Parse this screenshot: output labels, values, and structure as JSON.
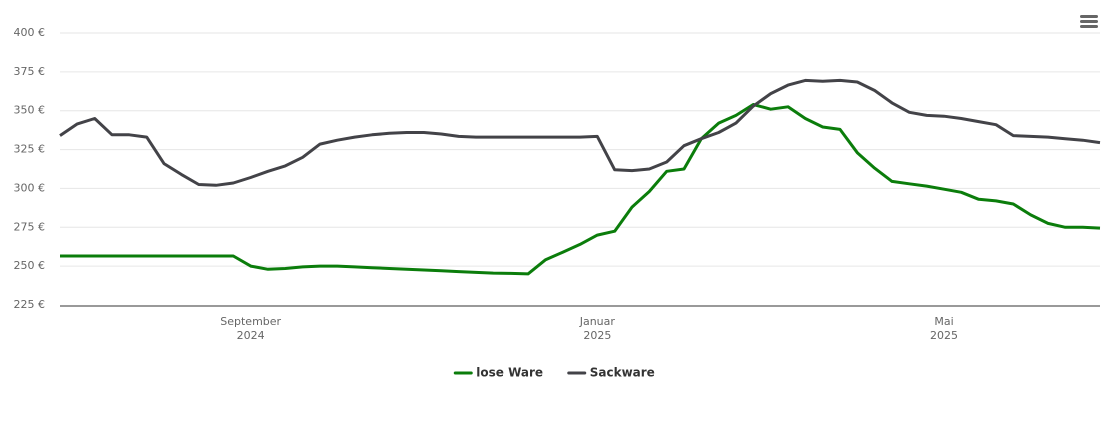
{
  "chart_data": {
    "type": "line",
    "categories": [
      null,
      null,
      null,
      null,
      null,
      null,
      null,
      null,
      null,
      null,
      null,
      "September 2024",
      null,
      null,
      null,
      null,
      null,
      null,
      null,
      null,
      null,
      null,
      null,
      null,
      null,
      null,
      null,
      null,
      null,
      null,
      null,
      "Januar 2025",
      null,
      null,
      null,
      null,
      null,
      null,
      null,
      null,
      null,
      null,
      null,
      null,
      null,
      null,
      null,
      null,
      null,
      null,
      null,
      "Mai 2025",
      null,
      null,
      null,
      null,
      null,
      null,
      null,
      null,
      null
    ],
    "series": [
      {
        "name": "lose Ware",
        "color": "#0b7d0b",
        "values": [
          256.5,
          256.5,
          256.5,
          256.5,
          256.5,
          256.5,
          256.5,
          256.5,
          256.5,
          256.5,
          256.5,
          250,
          248,
          248.5,
          249.5,
          250,
          250,
          249.5,
          249,
          248.5,
          248,
          247.5,
          247,
          246.5,
          246,
          245.5,
          245.3,
          245,
          254,
          259,
          264,
          270,
          272.5,
          288,
          298,
          311,
          312.5,
          332,
          342,
          347,
          354,
          351,
          352.5,
          345,
          339.5,
          338,
          323,
          313,
          304.5,
          303,
          301.5,
          299.5,
          297.5,
          293,
          292,
          290,
          283,
          277.5,
          275,
          275,
          274.5
        ]
      },
      {
        "name": "Sackware",
        "color": "#434348",
        "values": [
          334,
          341.5,
          345,
          334.5,
          334.5,
          333,
          316,
          309,
          302.5,
          302,
          303.5,
          307,
          311,
          314.5,
          320,
          328.5,
          331,
          333,
          334.5,
          335.5,
          336,
          336,
          335,
          333.5,
          333,
          333,
          333,
          333,
          333,
          333,
          333,
          333.5,
          312,
          311.5,
          312.5,
          317,
          327.5,
          332,
          336,
          342,
          353,
          361,
          366.5,
          369.5,
          369,
          369.5,
          368.5,
          363,
          355,
          349,
          347,
          346.5,
          345,
          343,
          341,
          334,
          333.5,
          333,
          332,
          331,
          329.5
        ]
      }
    ],
    "ylim": [
      225,
      400
    ],
    "yticks": [
      {
        "value": 225,
        "label": "225 €"
      },
      {
        "value": 250,
        "label": "250 €"
      },
      {
        "value": 275,
        "label": "275 €"
      },
      {
        "value": 300,
        "label": "300 €"
      },
      {
        "value": 325,
        "label": "325 €"
      },
      {
        "value": 350,
        "label": "350 €"
      },
      {
        "value": 375,
        "label": "375 €"
      },
      {
        "value": 400,
        "label": "400 €"
      }
    ],
    "grid": true
  }
}
